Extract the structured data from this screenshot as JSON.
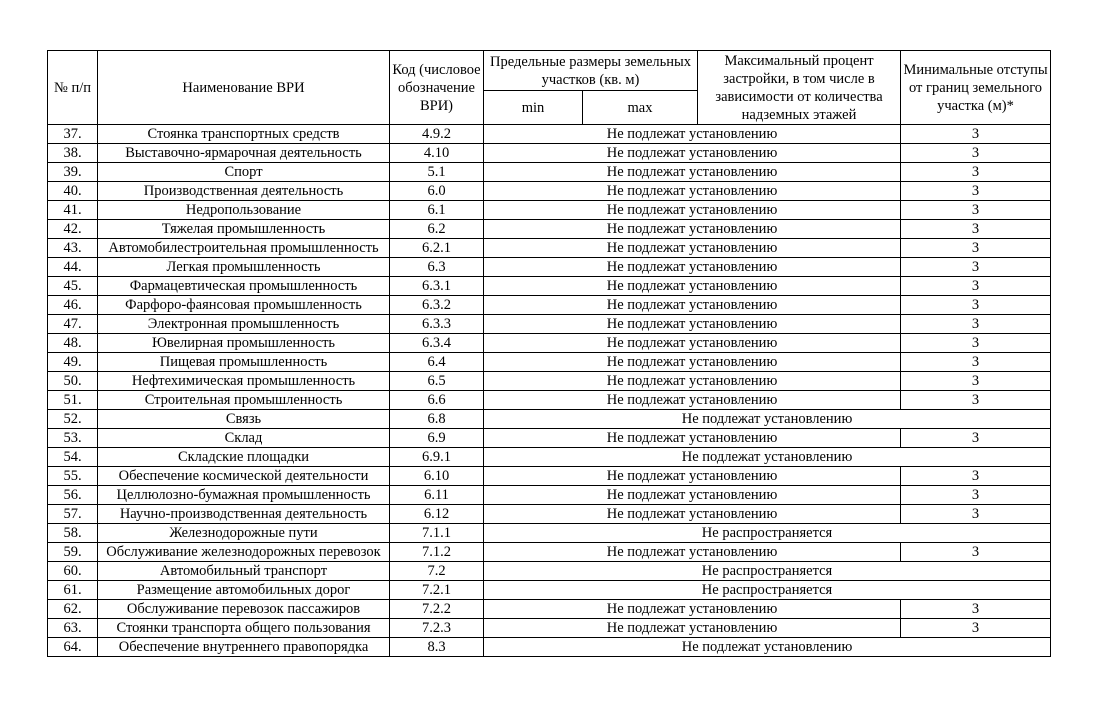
{
  "table": {
    "header": {
      "num": "№ п/п",
      "name": "Наименование ВРИ",
      "code": "Код (числовое обозначение ВРИ)",
      "sizes": "Предельные размеры земельных участков (кв. м)",
      "min": "min",
      "max": "max",
      "percent": "Максимальный процент застройки, в том числе в зависимости от количества надземных этажей",
      "setback": "Минимальные отступы от границ земельного участка (м)*"
    },
    "rows": [
      {
        "num": "37.",
        "name": "Стоянка транспортных средств",
        "code": "4.9.2",
        "value": "Не подлежат установлению",
        "setback": 3
      },
      {
        "num": "38.",
        "name": "Выставочно-ярмарочная деятельность",
        "code": "4.10",
        "value": "Не подлежат установлению",
        "setback": 3
      },
      {
        "num": "39.",
        "name": "Спорт",
        "code": "5.1",
        "value": "Не подлежат установлению",
        "setback": 3
      },
      {
        "num": "40.",
        "name": "Производственная деятельность",
        "code": "6.0",
        "value": "Не подлежат установлению",
        "setback": 3
      },
      {
        "num": "41.",
        "name": "Недропользование",
        "code": "6.1",
        "value": "Не подлежат установлению",
        "setback": 3
      },
      {
        "num": "42.",
        "name": "Тяжелая промышленность",
        "code": "6.2",
        "value": "Не подлежат установлению",
        "setback": 3
      },
      {
        "num": "43.",
        "name": "Автомобилестроительная промышленность",
        "code": "6.2.1",
        "value": "Не подлежат установлению",
        "setback": 3
      },
      {
        "num": "44.",
        "name": "Легкая промышленность",
        "code": "6.3",
        "value": "Не подлежат установлению",
        "setback": 3
      },
      {
        "num": "45.",
        "name": "Фармацевтическая промышленность",
        "code": "6.3.1",
        "value": "Не подлежат установлению",
        "setback": 3
      },
      {
        "num": "46.",
        "name": "Фарфоро-фаянсовая промышленность",
        "code": "6.3.2",
        "value": "Не подлежат установлению",
        "setback": 3
      },
      {
        "num": "47.",
        "name": "Электронная промышленность",
        "code": "6.3.3",
        "value": "Не подлежат установлению",
        "setback": 3
      },
      {
        "num": "48.",
        "name": "Ювелирная промышленность",
        "code": "6.3.4",
        "value": "Не подлежат установлению",
        "setback": 3
      },
      {
        "num": "49.",
        "name": "Пищевая промышленность",
        "code": "6.4",
        "value": "Не подлежат установлению",
        "setback": 3
      },
      {
        "num": "50.",
        "name": "Нефтехимическая промышленность",
        "code": "6.5",
        "value": "Не подлежат установлению",
        "setback": 3
      },
      {
        "num": "51.",
        "name": "Строительная промышленность",
        "code": "6.6",
        "value": "Не подлежат установлению",
        "setback": 3
      },
      {
        "num": "52.",
        "name": "Связь",
        "code": "6.8",
        "value": "Не подлежат установлению"
      },
      {
        "num": "53.",
        "name": "Склад",
        "code": "6.9",
        "value": "Не подлежат установлению",
        "setback": 3
      },
      {
        "num": "54.",
        "name": "Складские площадки",
        "code": "6.9.1",
        "value": "Не подлежат установлению"
      },
      {
        "num": "55.",
        "name": "Обеспечение космической деятельности",
        "code": "6.10",
        "value": "Не подлежат установлению",
        "setback": 3
      },
      {
        "num": "56.",
        "name": "Целлюлозно-бумажная промышленность",
        "code": "6.11",
        "value": "Не подлежат установлению",
        "setback": 3
      },
      {
        "num": "57.",
        "name": "Научно-производственная деятельность",
        "code": "6.12",
        "value": "Не подлежат установлению",
        "setback": 3
      },
      {
        "num": "58.",
        "name": "Железнодорожные пути",
        "code": "7.1.1",
        "value": "Не распространяется"
      },
      {
        "num": "59.",
        "name": "Обслуживание железнодорожных перевозок",
        "code": "7.1.2",
        "value": "Не подлежат установлению",
        "setback": 3
      },
      {
        "num": "60.",
        "name": "Автомобильный транспорт",
        "code": "7.2",
        "value": "Не распространяется"
      },
      {
        "num": "61.",
        "name": "Размещение автомобильных дорог",
        "code": "7.2.1",
        "value": "Не распространяется"
      },
      {
        "num": "62.",
        "name": "Обслуживание перевозок пассажиров",
        "code": "7.2.2",
        "value": "Не подлежат установлению",
        "setback": 3
      },
      {
        "num": "63.",
        "name": "Стоянки транспорта общего пользования",
        "code": "7.2.3",
        "value": "Не подлежат установлению",
        "setback": 3
      },
      {
        "num": "64.",
        "name": "Обеспечение внутреннего правопорядка",
        "code": "8.3",
        "value": "Не подлежат установлению"
      }
    ]
  }
}
